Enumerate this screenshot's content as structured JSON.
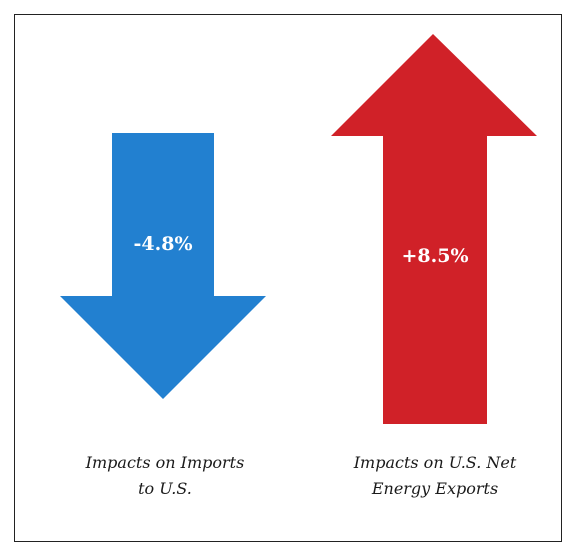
{
  "arrows": [
    {
      "direction": "down",
      "value_label": "-4.8%",
      "color": "#2280d0",
      "caption": [
        "Impacts on Imports",
        "to U.S."
      ]
    },
    {
      "direction": "up",
      "value_label": "+8.5%",
      "color": "#d02128",
      "caption": [
        "Impacts on U.S. Net",
        "Energy Exports"
      ]
    }
  ]
}
